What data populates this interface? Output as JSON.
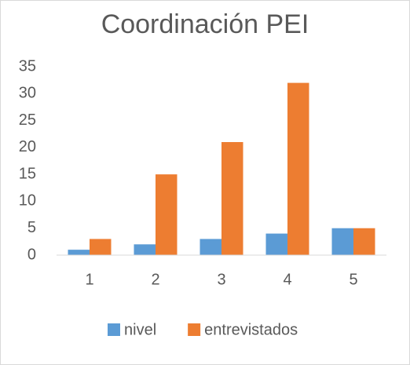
{
  "chart_data": {
    "type": "bar",
    "title": "Coordinación PEI",
    "categories": [
      "1",
      "2",
      "3",
      "4",
      "5"
    ],
    "series": [
      {
        "name": "nivel",
        "color": "#5b9bd5",
        "values": [
          1,
          2,
          3,
          4,
          5
        ]
      },
      {
        "name": "entrevistados",
        "color": "#ed7d31",
        "values": [
          3,
          15,
          21,
          32,
          5
        ]
      }
    ],
    "ylim": [
      0,
      35
    ],
    "yticks": [
      0,
      5,
      10,
      15,
      20,
      25,
      30,
      35
    ],
    "grid": false,
    "legend": "bottom"
  }
}
